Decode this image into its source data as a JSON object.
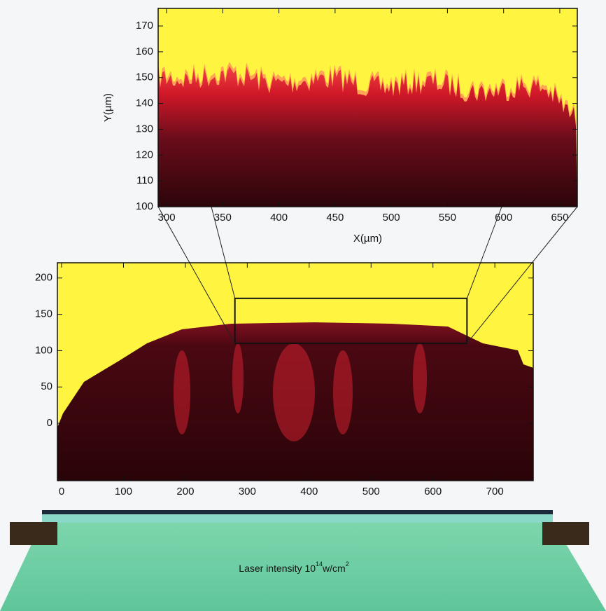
{
  "chart_data": [
    {
      "type": "heatmap",
      "xlabel": "X(µm)",
      "ylabel": "Y(µm)",
      "xlim": [
        292.5,
        665.6
      ],
      "ylim": [
        100,
        176.8
      ],
      "xticks": [
        300,
        350,
        400,
        450,
        500,
        550,
        600,
        650
      ],
      "yticks": [
        100,
        110,
        120,
        130,
        140,
        150,
        160,
        170
      ]
    },
    {
      "type": "heatmap",
      "xlim": [
        -6.8,
        762
      ],
      "ylim": [
        -79,
        221
      ],
      "xticks": [
        0,
        100,
        200,
        300,
        400,
        500,
        600,
        700
      ],
      "yticks": [
        0,
        50,
        100,
        150,
        200
      ],
      "inset_region": {
        "x": [
          280,
          655
        ],
        "y": [
          110,
          172
        ]
      }
    }
  ],
  "caption": {
    "text": "Laser intensity 10",
    "exponent": "14",
    "unit": "w/cm",
    "unit_exponent": "2"
  }
}
